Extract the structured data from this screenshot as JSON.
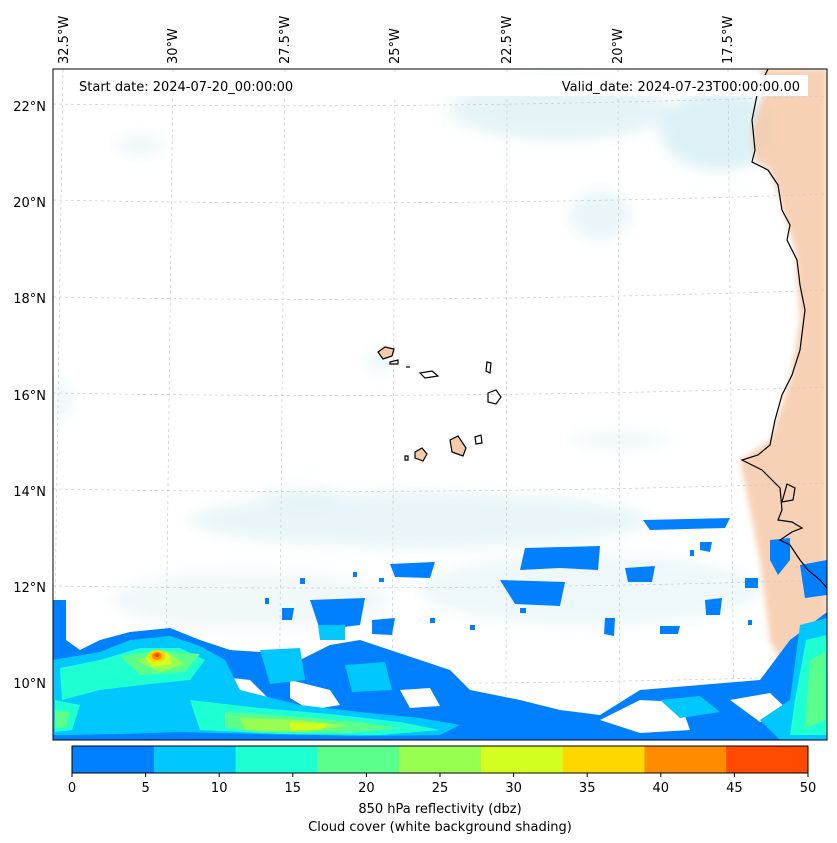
{
  "map": {
    "start_date": "Start date: 2024-07-20_00:00:00",
    "valid_date": "Valid_date: 2024-07-23T00:00:00.00",
    "lon_labels": [
      "32.5°W",
      "30°W",
      "27.5°W",
      "25°W",
      "22.5°W",
      "20°W",
      "17.5°W"
    ],
    "lat_labels": [
      "22°N",
      "20°N",
      "18°N",
      "16°N",
      "14°N",
      "12°N",
      "10°N"
    ]
  },
  "colorbar": {
    "ticks": [
      "0",
      "5",
      "10",
      "15",
      "20",
      "25",
      "30",
      "35",
      "40",
      "45",
      "50"
    ],
    "colors": [
      "#0080ff",
      "#00c8ff",
      "#1effd2",
      "#5aff8c",
      "#96ff50",
      "#d2ff1e",
      "#ffd700",
      "#ff8c00",
      "#ff4a00"
    ],
    "label_line1": "850 hPa reflectivity (dbz)",
    "label_line2": "Cloud cover (white background shading)"
  },
  "colors": {
    "land": "#f6c9a8",
    "cloud": "#cfe9f0",
    "coast": "#000000",
    "grid": "#cccccc"
  }
}
